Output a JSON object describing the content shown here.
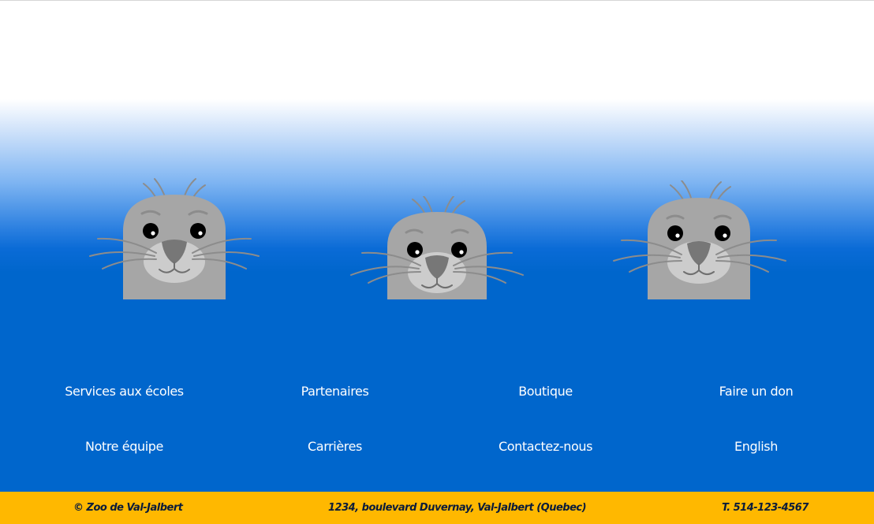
{
  "hero": {
    "seals": [
      {
        "name": "seal-1",
        "icon": "seal-face-icon"
      },
      {
        "name": "seal-2",
        "icon": "seal-face-icon"
      },
      {
        "name": "seal-3",
        "icon": "seal-face-icon"
      }
    ]
  },
  "footer_nav": {
    "links": [
      {
        "label": "Services aux écoles"
      },
      {
        "label": "Partenaires"
      },
      {
        "label": "Boutique"
      },
      {
        "label": "Faire un don"
      },
      {
        "label": "Notre équipe"
      },
      {
        "label": "Carrières"
      },
      {
        "label": "Contactez-nous"
      },
      {
        "label": "English"
      }
    ]
  },
  "bottom_bar": {
    "copyright": "© Zoo de Val-Jalbert",
    "address": "1234, boulevard Duvernay, Val-Jalbert (Quebec)",
    "phone": "T. 514-123-4567"
  },
  "colors": {
    "ocean_blue": "#0066cc",
    "footer_yellow": "#ffb800",
    "seal_grey": "#a6a6a6",
    "link_text": "#ffffff",
    "bottom_text": "#0b1c3a"
  }
}
